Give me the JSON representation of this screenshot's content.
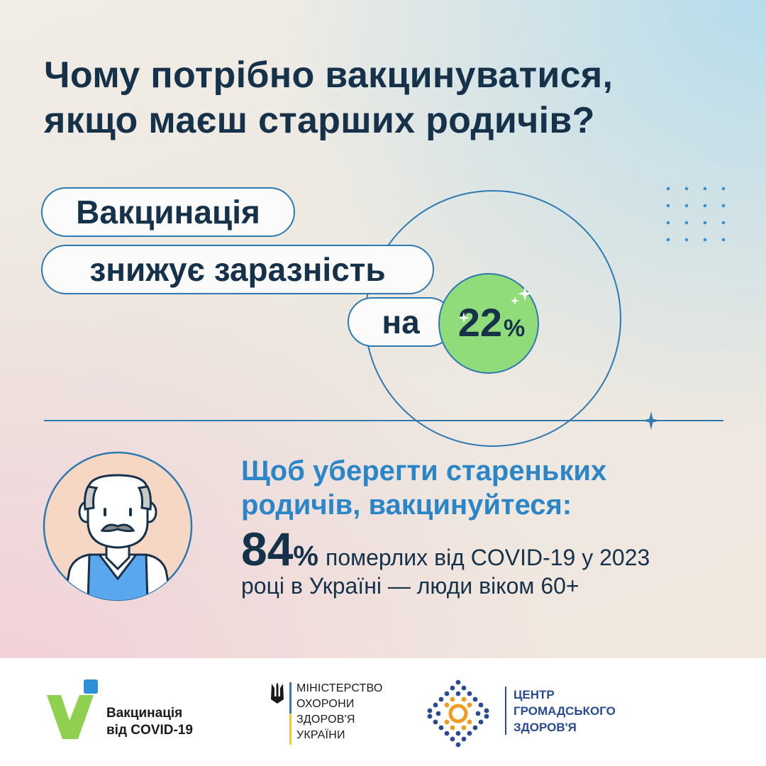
{
  "title": {
    "line1": "Чому потрібно вакцинуватися,",
    "line2": "якщо маєш старших родичів?"
  },
  "pills": {
    "line1": "Вакцинація",
    "line2": "знижує заразність",
    "line3": "на"
  },
  "badge": {
    "value": "22",
    "unit": "%"
  },
  "subhead": {
    "line1": "Щоб уберегти старeньких",
    "line2": "родичів, вакцинуйтеся:"
  },
  "stat": {
    "value": "84",
    "unit": "%",
    "text1": "померлих від COVID-19 у 2023",
    "text2": "році в Україні — люди віком 60+"
  },
  "footer": {
    "vax_line1": "Вакцинація",
    "vax_line2": "від COVID-19",
    "moh_line1": "МІНІСТЕРСТВО",
    "moh_line2": "ОХОРОНИ",
    "moh_line3": "ЗДОРОВ'Я",
    "moh_line4": "УКРАЇНИ",
    "phc_line1": "ЦЕНТР",
    "phc_line2": "ГРОМАДСЬКОГО",
    "phc_line3": "ЗДОРОВ'Я"
  },
  "colors": {
    "navy": "#16324a",
    "blue": "#2d79b2",
    "accent_blue": "#2b86c8",
    "green": "#90dc7a",
    "logo_green": "#8fd14f",
    "logo_blue": "#2f8fd8",
    "ukraine_blue": "#3476c2",
    "ukraine_yellow": "#f2cb2c",
    "phc_navy": "#2a4b94",
    "phc_orange": "#f29a1f"
  },
  "icons": {
    "sparkles": "sparkles-icon",
    "star": "four-point-star-icon",
    "avatar": "elderly-man-avatar",
    "trident": "ukraine-trident-icon"
  }
}
